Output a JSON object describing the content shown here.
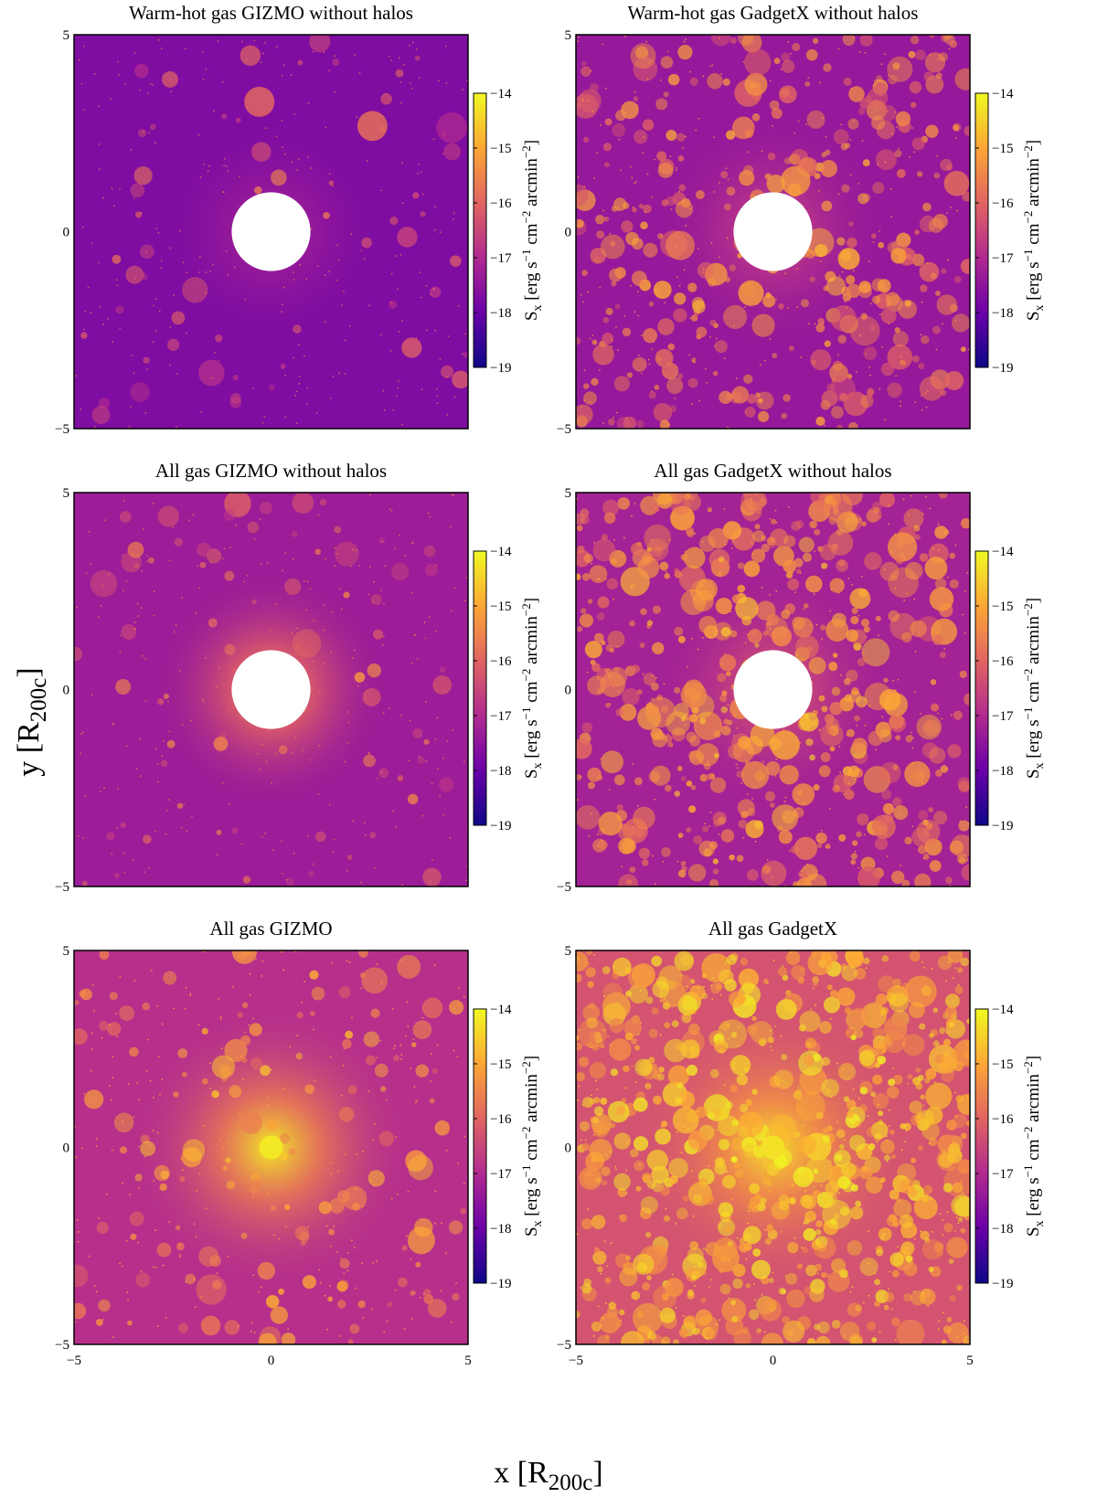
{
  "figure": {
    "ylabel": "y [R",
    "ylabel_sub": "200c",
    "ylabel_end": "]",
    "xlabel": "x [R",
    "xlabel_sub": "200c",
    "xlabel_end": "]",
    "colorbar": {
      "label_main": "S",
      "label_sub": "x",
      "label_units": "[erg s",
      "label_exp1": "−1",
      "label_mid": " cm",
      "label_exp2": "−2",
      "label_tail": " arcmin",
      "label_exp3": "−2",
      "label_end": "]",
      "ticks": [
        -14,
        -15,
        -16,
        -17,
        -18,
        -19
      ],
      "tick_labels": [
        "−14",
        "−15",
        "−16",
        "−17",
        "−18",
        "−19"
      ],
      "range": [
        -19,
        -14
      ],
      "colormap": "plasma",
      "colors": [
        "#0d0887",
        "#6a00a8",
        "#b12a90",
        "#e16462",
        "#fca636",
        "#f0f921"
      ]
    }
  },
  "chart_data": [
    {
      "type": "heatmap",
      "title": "Warm-hot gas GIZMO without halos",
      "xlim": [
        -5,
        5
      ],
      "ylim": [
        -5,
        5
      ],
      "x_ticks": [
        -5,
        0,
        5
      ],
      "y_ticks": [
        -5,
        0,
        5
      ],
      "x_tick_labels": [
        "−5",
        "0",
        "5"
      ],
      "y_tick_labels": [
        "−5",
        "0",
        "5"
      ],
      "show_x_ticks": false,
      "masked_center_radius": 1,
      "background_level": -17.7,
      "clump_level": -16.5,
      "clump_count": 60,
      "center_level": -17.0,
      "colorbar_range": [
        -19,
        -14
      ]
    },
    {
      "type": "heatmap",
      "title": "Warm-hot gas GadgetX without halos",
      "xlim": [
        -5,
        5
      ],
      "ylim": [
        -5,
        5
      ],
      "x_ticks": [
        -5,
        0,
        5
      ],
      "y_ticks": [
        -5,
        0,
        5
      ],
      "x_tick_labels": [
        "−5",
        "0",
        "5"
      ],
      "y_tick_labels": [
        "−5",
        "0",
        "5"
      ],
      "show_x_ticks": false,
      "masked_center_radius": 1,
      "background_level": -17.4,
      "clump_level": -15.8,
      "clump_count": 380,
      "center_level": -16.3,
      "colorbar_range": [
        -19,
        -14
      ]
    },
    {
      "type": "heatmap",
      "title": "All gas GIZMO without halos",
      "xlim": [
        -5,
        5
      ],
      "ylim": [
        -5,
        5
      ],
      "x_ticks": [
        -5,
        0,
        5
      ],
      "y_ticks": [
        -5,
        0,
        5
      ],
      "x_tick_labels": [
        "−5",
        "0",
        "5"
      ],
      "y_tick_labels": [
        "−5",
        "0",
        "5"
      ],
      "show_x_ticks": false,
      "masked_center_radius": 1,
      "background_level": -17.3,
      "clump_level": -16.3,
      "clump_count": 80,
      "center_level": -14.8,
      "colorbar_range": [
        -19,
        -14
      ]
    },
    {
      "type": "heatmap",
      "title": "All gas GadgetX without halos",
      "xlim": [
        -5,
        5
      ],
      "ylim": [
        -5,
        5
      ],
      "x_ticks": [
        -5,
        0,
        5
      ],
      "y_ticks": [
        -5,
        0,
        5
      ],
      "x_tick_labels": [
        "−5",
        "0",
        "5"
      ],
      "y_tick_labels": [
        "−5",
        "0",
        "5"
      ],
      "show_x_ticks": false,
      "masked_center_radius": 1,
      "background_level": -17.2,
      "clump_level": -15.6,
      "clump_count": 520,
      "center_level": -15.9,
      "colorbar_range": [
        -19,
        -14
      ]
    },
    {
      "type": "heatmap",
      "title": "All gas GIZMO",
      "xlim": [
        -5,
        5
      ],
      "ylim": [
        -5,
        5
      ],
      "x_ticks": [
        -5,
        0,
        5
      ],
      "y_ticks": [
        -5,
        0,
        5
      ],
      "x_tick_labels": [
        "−5",
        "0",
        "5"
      ],
      "y_tick_labels": [
        "−5",
        "0",
        "5"
      ],
      "show_x_ticks": true,
      "masked_center_radius": 0,
      "background_level": -16.9,
      "clump_level": -15.6,
      "clump_count": 150,
      "center_level": -14.2,
      "colorbar_range": [
        -19,
        -14
      ]
    },
    {
      "type": "heatmap",
      "title": "All gas GadgetX",
      "xlim": [
        -5,
        5
      ],
      "ylim": [
        -5,
        5
      ],
      "x_ticks": [
        -5,
        0,
        5
      ],
      "y_ticks": [
        -5,
        0,
        5
      ],
      "x_tick_labels": [
        "−5",
        "0",
        "5"
      ],
      "y_tick_labels": [
        "−5",
        "0",
        "5"
      ],
      "show_x_ticks": true,
      "masked_center_radius": 0,
      "background_level": -16.3,
      "clump_level": -15.0,
      "clump_count": 700,
      "center_level": -14.3,
      "colorbar_range": [
        -19,
        -14
      ]
    }
  ]
}
